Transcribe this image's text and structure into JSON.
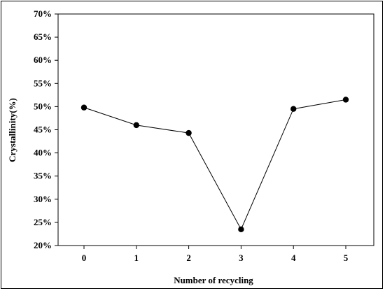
{
  "chart_data": {
    "type": "line",
    "title": "",
    "xlabel": "Number of recycling",
    "ylabel": "Crystallinity(%)",
    "x": [
      0,
      1,
      2,
      3,
      4,
      5
    ],
    "x_tick_labels": [
      "0",
      "1",
      "2",
      "3",
      "4",
      "5"
    ],
    "y_tick_labels": [
      "20%",
      "25%",
      "30%",
      "35%",
      "40%",
      "45%",
      "50%",
      "55%",
      "60%",
      "65%",
      "70%"
    ],
    "ylim": [
      20,
      70
    ],
    "series": [
      {
        "values": [
          49.8,
          46.0,
          44.3,
          23.5,
          49.5,
          51.5
        ]
      }
    ],
    "grid": false,
    "legend": "none",
    "line_color": "#000000",
    "marker_color": "#000000"
  }
}
